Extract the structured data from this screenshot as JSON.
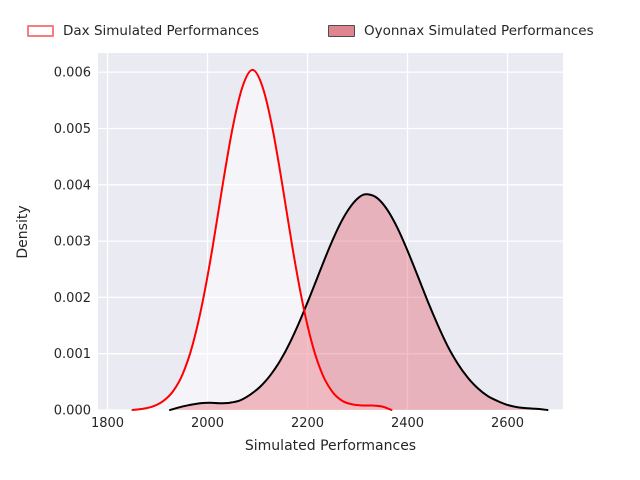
{
  "legend": {
    "items": [
      {
        "label": "Dax Simulated Performances",
        "fill": "#ffffff",
        "border": "#f97c7c"
      },
      {
        "label": "Oyonnax Simulated Performances",
        "fill": "#e08490",
        "border": "#4d4d4d"
      }
    ]
  },
  "chart_data": {
    "type": "area",
    "subtype": "kde-density",
    "title": "",
    "xlabel": "Simulated Performances",
    "ylabel": "Density",
    "xlim": [
      1781,
      2711
    ],
    "ylim": [
      0,
      0.00634
    ],
    "grid": true,
    "legend_position": "top",
    "plot_bg": "#eaeaf2",
    "grid_color": "#ffffff",
    "xticks": [
      {
        "v": 1800,
        "label": "1800"
      },
      {
        "v": 2000,
        "label": "2000"
      },
      {
        "v": 2200,
        "label": "2200"
      },
      {
        "v": 2400,
        "label": "2400"
      },
      {
        "v": 2600,
        "label": "2600"
      }
    ],
    "yticks": [
      {
        "v": 0.0,
        "label": "0.000"
      },
      {
        "v": 0.001,
        "label": "0.001"
      },
      {
        "v": 0.002,
        "label": "0.002"
      },
      {
        "v": 0.003,
        "label": "0.003"
      },
      {
        "v": 0.004,
        "label": "0.004"
      },
      {
        "v": 0.005,
        "label": "0.005"
      },
      {
        "v": 0.006,
        "label": "0.006"
      }
    ],
    "series": [
      {
        "name": "Dax Simulated Performances",
        "id": "dax",
        "line_color": "#ff0000",
        "fill_color": "rgba(255,255,255,0.5)",
        "peak": {
          "x": 2090,
          "density": 0.00604
        },
        "points": [
          [
            1850,
            0
          ],
          [
            1870,
            2e-05
          ],
          [
            1890,
            6e-05
          ],
          [
            1910,
            0.00015
          ],
          [
            1930,
            0.00032
          ],
          [
            1950,
            0.00063
          ],
          [
            1970,
            0.00115
          ],
          [
            1990,
            0.00191
          ],
          [
            2010,
            0.00288
          ],
          [
            2030,
            0.00398
          ],
          [
            2050,
            0.005
          ],
          [
            2070,
            0.00574
          ],
          [
            2090,
            0.00604
          ],
          [
            2110,
            0.00574
          ],
          [
            2130,
            0.005
          ],
          [
            2150,
            0.00398
          ],
          [
            2170,
            0.00288
          ],
          [
            2190,
            0.00191
          ],
          [
            2210,
            0.00115
          ],
          [
            2230,
            0.00063
          ],
          [
            2250,
            0.00032
          ],
          [
            2270,
            0.00016
          ],
          [
            2290,
            0.0001
          ],
          [
            2310,
            8e-05
          ],
          [
            2330,
            8e-05
          ],
          [
            2350,
            6e-05
          ],
          [
            2368,
            0
          ]
        ]
      },
      {
        "name": "Oyonnax Simulated Performances",
        "id": "oyonnax",
        "line_color": "#000000",
        "fill_color": "rgba(225,65,80,0.33)",
        "peak": {
          "x": 2320,
          "density": 0.00383
        },
        "points": [
          [
            1925,
            0
          ],
          [
            1945,
            5e-05
          ],
          [
            1965,
            9e-05
          ],
          [
            1985,
            0.00012
          ],
          [
            2005,
            0.00013
          ],
          [
            2025,
            0.00012
          ],
          [
            2045,
            0.00013
          ],
          [
            2065,
            0.00017
          ],
          [
            2085,
            0.00027
          ],
          [
            2105,
            0.00041
          ],
          [
            2125,
            0.00061
          ],
          [
            2145,
            0.00087
          ],
          [
            2165,
            0.0012
          ],
          [
            2185,
            0.00159
          ],
          [
            2205,
            0.00202
          ],
          [
            2225,
            0.00247
          ],
          [
            2245,
            0.00291
          ],
          [
            2265,
            0.0033
          ],
          [
            2285,
            0.0036
          ],
          [
            2305,
            0.00379
          ],
          [
            2320,
            0.00383
          ],
          [
            2340,
            0.00376
          ],
          [
            2360,
            0.00355
          ],
          [
            2380,
            0.00323
          ],
          [
            2400,
            0.00283
          ],
          [
            2420,
            0.00239
          ],
          [
            2440,
            0.00194
          ],
          [
            2460,
            0.00152
          ],
          [
            2480,
            0.00114
          ],
          [
            2500,
            0.00083
          ],
          [
            2520,
            0.00058
          ],
          [
            2540,
            0.00039
          ],
          [
            2560,
            0.00025
          ],
          [
            2580,
            0.00016
          ],
          [
            2600,
            9e-05
          ],
          [
            2620,
            5e-05
          ],
          [
            2640,
            3e-05
          ],
          [
            2660,
            2e-05
          ],
          [
            2680,
            0
          ]
        ]
      }
    ]
  }
}
